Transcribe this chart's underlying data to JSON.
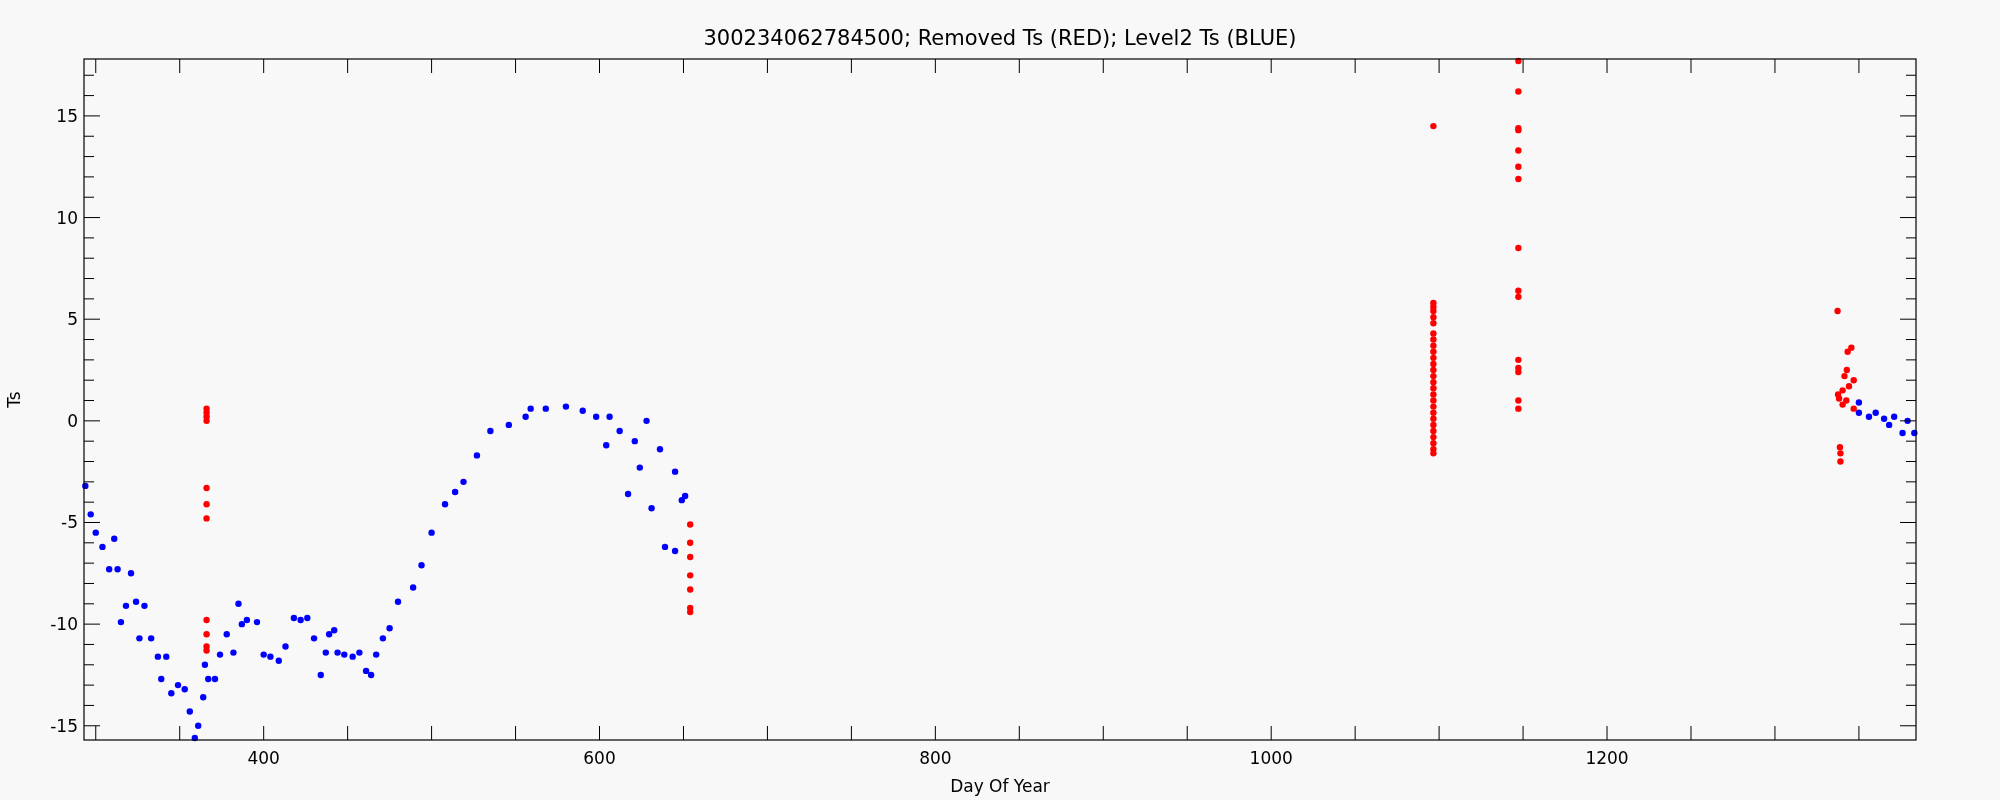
{
  "chart_data": {
    "type": "scatter",
    "title": "300234062784500; Removed Ts (RED); Level2 Ts (BLUE)",
    "xlabel": "Day Of Year",
    "ylabel": "Ts",
    "xlim": [
      293,
      1384
    ],
    "ylim": [
      -15.7,
      17.8
    ],
    "xticks": [
      {
        "value": 300,
        "label": null
      },
      {
        "value": 350,
        "label": null
      },
      400,
      {
        "value": 450,
        "label": null
      },
      {
        "value": 500,
        "label": null
      },
      {
        "value": 550,
        "label": null
      },
      600,
      {
        "value": 650,
        "label": null
      },
      {
        "value": 700,
        "label": null
      },
      {
        "value": 750,
        "label": null
      },
      800,
      {
        "value": 850,
        "label": null
      },
      {
        "value": 900,
        "label": null
      },
      {
        "value": 950,
        "label": null
      },
      1000,
      {
        "value": 1050,
        "label": null
      },
      {
        "value": 1100,
        "label": null
      },
      {
        "value": 1150,
        "label": null
      },
      1200,
      {
        "value": 1250,
        "label": null
      },
      {
        "value": 1300,
        "label": null
      },
      {
        "value": 1350,
        "label": null
      }
    ],
    "yticks": [
      -15,
      {
        "value": -14,
        "label": null
      },
      {
        "value": -13,
        "label": null
      },
      {
        "value": -12,
        "label": null
      },
      {
        "value": -11,
        "label": null
      },
      -10,
      {
        "value": -9,
        "label": null
      },
      {
        "value": -8,
        "label": null
      },
      {
        "value": -7,
        "label": null
      },
      {
        "value": -6,
        "label": null
      },
      -5,
      {
        "value": -4,
        "label": null
      },
      {
        "value": -3,
        "label": null
      },
      {
        "value": -2,
        "label": null
      },
      {
        "value": -1,
        "label": null
      },
      0,
      {
        "value": 1,
        "label": null
      },
      {
        "value": 2,
        "label": null
      },
      {
        "value": 3,
        "label": null
      },
      {
        "value": 4,
        "label": null
      },
      5,
      {
        "value": 6,
        "label": null
      },
      {
        "value": 7,
        "label": null
      },
      {
        "value": 8,
        "label": null
      },
      {
        "value": 9,
        "label": null
      },
      10,
      {
        "value": 11,
        "label": null
      },
      {
        "value": 12,
        "label": null
      },
      {
        "value": 13,
        "label": null
      },
      {
        "value": 14,
        "label": null
      },
      15,
      {
        "value": 16,
        "label": null
      },
      {
        "value": 17,
        "label": null
      }
    ],
    "grid": false,
    "marker": "circle",
    "series": [
      {
        "color": "#0000ff",
        "x": [
          293.8,
          297,
          300,
          304,
          308,
          311,
          313,
          315,
          318,
          321,
          324,
          326,
          329,
          333,
          337,
          339,
          342,
          345,
          349,
          353,
          356,
          359,
          361,
          364,
          365,
          367,
          371,
          374,
          378,
          382,
          385,
          387,
          390,
          396,
          400,
          404,
          409,
          413,
          418,
          422,
          426,
          430,
          434,
          437,
          439,
          442,
          444,
          448,
          453,
          457,
          461,
          464,
          467,
          471,
          475,
          480,
          489,
          494,
          500,
          508,
          514,
          519,
          527,
          535,
          546,
          556,
          559,
          568,
          580,
          590,
          598,
          604,
          606,
          612,
          617,
          621,
          624,
          628,
          631,
          636,
          639,
          645,
          645,
          649,
          651,
          1350,
          1350,
          1356,
          1360,
          1365,
          1368,
          1371,
          1376,
          1379,
          1383
        ],
        "values": [
          -3.2,
          -4.6,
          -5.5,
          -6.2,
          -7.3,
          -5.8,
          -7.3,
          -9.9,
          -9.1,
          -7.5,
          -8.9,
          -10.7,
          -9.1,
          -10.7,
          -11.6,
          -12.7,
          -11.6,
          -13.4,
          -13.0,
          -13.2,
          -14.3,
          -15.6,
          -15.0,
          -13.6,
          -12.0,
          -12.7,
          -12.7,
          -11.5,
          -10.5,
          -11.4,
          -9.0,
          -10.0,
          -9.8,
          -9.9,
          -11.5,
          -11.6,
          -11.8,
          -11.1,
          -9.7,
          -9.8,
          -9.7,
          -10.7,
          -12.5,
          -11.4,
          -10.5,
          -10.3,
          -11.4,
          -11.5,
          -11.6,
          -11.4,
          -12.3,
          -12.5,
          -11.5,
          -10.7,
          -10.2,
          -8.9,
          -8.2,
          -7.1,
          -5.5,
          -4.1,
          -3.5,
          -3.0,
          -1.7,
          -0.5,
          -0.2,
          0.2,
          0.6,
          0.6,
          0.7,
          0.5,
          0.2,
          -1.2,
          0.2,
          -0.5,
          -3.6,
          -1.0,
          -2.3,
          0.0,
          -4.3,
          -1.4,
          -6.2,
          -2.5,
          -6.4,
          -3.9,
          -3.7,
          0.9,
          0.4,
          0.2,
          0.4,
          0.1,
          -0.2,
          0.2,
          -0.6,
          0.0,
          -0.6
        ]
      },
      {
        "color": "#ff0000",
        "x": [
          366,
          366,
          366,
          366,
          366,
          366,
          366,
          366,
          366,
          366,
          366,
          654,
          654,
          654,
          654,
          654,
          654,
          654,
          1096.6,
          1096.6,
          1096.6,
          1096.6,
          1096.6,
          1096.6,
          1096.6,
          1096.6,
          1096.6,
          1096.6,
          1096.6,
          1096.6,
          1096.6,
          1096.6,
          1096.6,
          1096.6,
          1096.6,
          1096.6,
          1096.6,
          1096.6,
          1096.6,
          1096.6,
          1096.6,
          1096.6,
          1096.6,
          1096.6,
          1096.6,
          1147.2,
          1147.2,
          1147.2,
          1147.2,
          1147.2,
          1147.2,
          1147.2,
          1147.2,
          1147.2,
          1147.2,
          1147.2,
          1147.2,
          1147.2,
          1147.2,
          1147.2,
          1337.3,
          1345.5,
          1343.3,
          1342.8,
          1341.4,
          1346.9,
          1344.1,
          1340.3,
          1337.6,
          1338.2,
          1342.5,
          1340.3,
          1346.9,
          1338.7,
          1339,
          1339
        ],
        "values": [
          0.6,
          0.4,
          0.2,
          0.0,
          -3.3,
          -4.1,
          -4.8,
          -9.8,
          -10.5,
          -11.1,
          -11.3,
          -5.1,
          -6.0,
          -6.7,
          -7.6,
          -8.3,
          -9.2,
          -9.4,
          14.5,
          5.8,
          5.6,
          5.4,
          5.1,
          4.8,
          4.3,
          4.0,
          3.7,
          3.4,
          3.1,
          2.8,
          2.5,
          2.2,
          1.9,
          1.6,
          1.3,
          1.0,
          0.7,
          0.4,
          0.1,
          -0.2,
          -0.5,
          -0.8,
          -1.1,
          -1.4,
          -1.6,
          17.7,
          16.2,
          14.4,
          14.3,
          13.3,
          12.5,
          11.9,
          8.5,
          6.4,
          6.1,
          3.0,
          2.6,
          2.4,
          1.0,
          0.6,
          5.4,
          3.6,
          3.4,
          2.5,
          2.2,
          2.0,
          1.7,
          1.5,
          1.3,
          1.1,
          1.0,
          0.8,
          0.6,
          -1.3,
          -1.6,
          -2.0
        ]
      }
    ]
  }
}
